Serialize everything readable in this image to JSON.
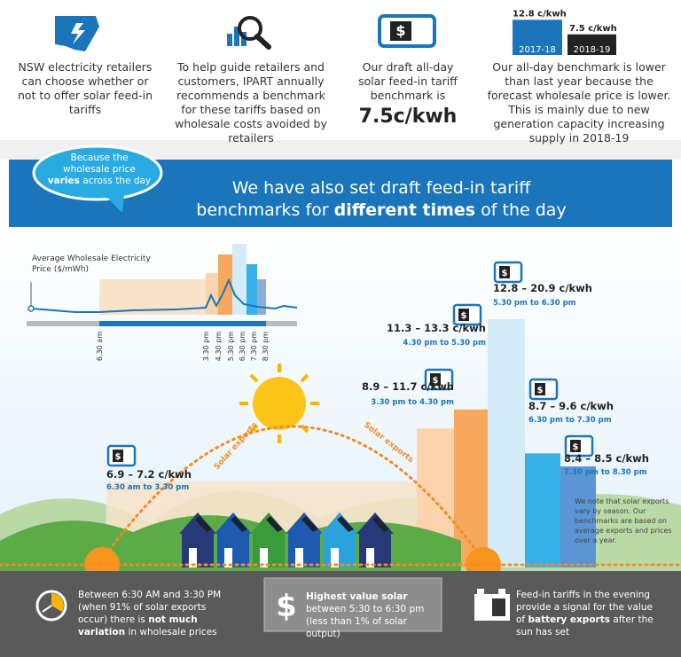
{
  "icon_symbol": "$",
  "intro": {
    "retailers": "NSW electricity retailers can choose whether or not to offer solar feed-in tariffs",
    "guide": "To help guide retailers and customers, IPART annually recommends a benchmark for these tariffs based on wholesale costs avoided by retailers",
    "benchmark_text": "Our draft all-day solar feed-in tariff benchmark is",
    "benchmark_value": "7.5c/kwh",
    "lower_text": "Our all-day benchmark is lower than last year because the forecast wholesale price is lower. This is mainly due to new generation capacity increasing supply in 2018-19"
  },
  "comparison": [
    {
      "year": "2017-18",
      "value": 12.8,
      "label": "12.8 c/kwh",
      "color": "#1b75bb"
    },
    {
      "year": "2018-19",
      "value": 7.5,
      "label": "7.5 c/kwh",
      "color": "#222222"
    }
  ],
  "bubble": {
    "before": "Because the wholesale price",
    "bold": "varies",
    "after": "across the day"
  },
  "banner": {
    "line1": "We have also set draft feed-in tariff",
    "line2_before": "benchmarks for",
    "line2_bold": "different times",
    "line2_after": "of the day"
  },
  "price_chart": {
    "title": "Average Wholesale Electricity Price ($/mWh)",
    "times": [
      "6.30 am",
      "3.30 pm",
      "4.30 pm",
      "5.30 pm",
      "6.30 pm",
      "7.30 pm",
      "8.30 pm"
    ]
  },
  "tariffs": [
    {
      "low": 6.9,
      "high": 7.2,
      "label": "6.9 – 7.2 c/kwh",
      "period": "6.30 am to 3.30 pm",
      "color": "#f8e3c9"
    },
    {
      "low": 8.9,
      "high": 11.7,
      "label": "8.9 – 11.7 c/kwh",
      "period": "3.30 pm to 4.30 pm",
      "color": "#fbd3ad"
    },
    {
      "low": 11.3,
      "high": 13.3,
      "label": "11.3 – 13.3 c/kwh",
      "period": "4.30 pm to 5.30 pm",
      "color": "#f6a95e"
    },
    {
      "low": 12.8,
      "high": 20.9,
      "label": "12.8 – 20.9 c/kwh",
      "period": "5.30 pm to 6.30 pm",
      "color": "#d4ecf9"
    },
    {
      "low": 8.7,
      "high": 9.6,
      "label": "8.7 – 9.6 c/kwh",
      "period": "6.30 pm to 7.30 pm",
      "color": "#36b0e6"
    },
    {
      "low": 8.4,
      "high": 8.5,
      "label": "8.4 – 8.5 c/kwh",
      "period": "7.30 pm to 8.30 pm",
      "color": "#5b95d6"
    }
  ],
  "solar_exports": [
    "Solar exports",
    "Solar exports"
  ],
  "note": "We note that solar exports vary by season. Our benchmarks are based on average exports and prices over a year.",
  "footer": [
    {
      "before": "Between 6:30 AM and 3:30 PM (when 91% of solar exports occur) there is",
      "bold": "not much variation",
      "after": "in wholesale prices"
    },
    {
      "bold": "Highest value solar",
      "after": "between 5:30 to 6:30 pm (less than 1% of solar output)"
    },
    {
      "before": "Feed-in tariffs in the evening provide a signal for the value of",
      "bold": "battery exports",
      "after": "after the sun has set"
    }
  ]
}
